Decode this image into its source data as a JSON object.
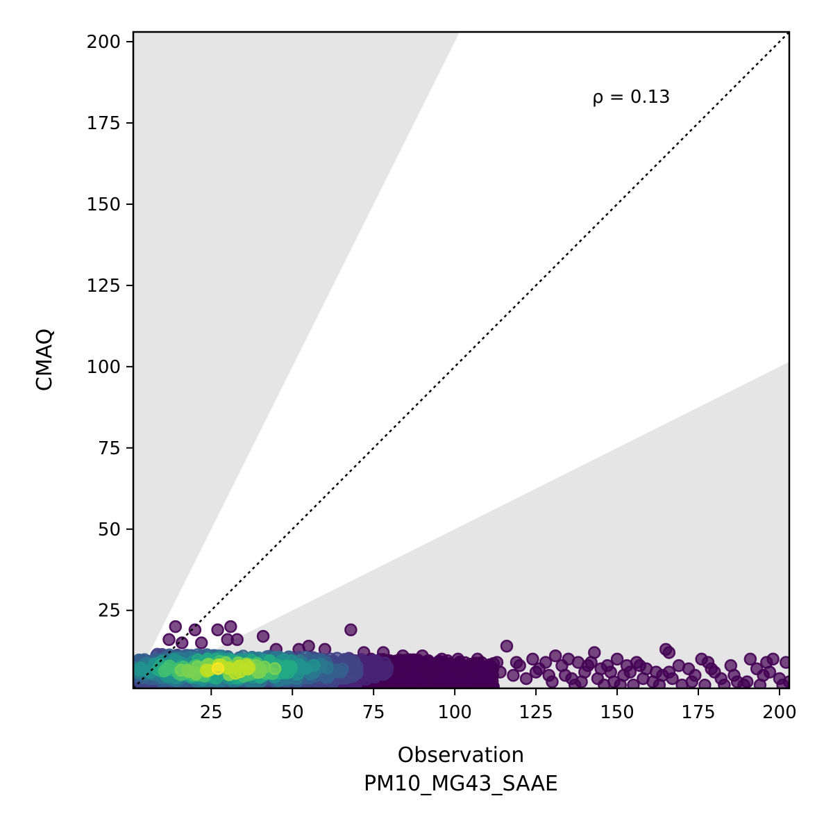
{
  "chart_data": {
    "type": "scatter",
    "title": "",
    "xlabel": "Observation",
    "xlabel2": "PM10_MG43_SAAE",
    "ylabel": "CMAQ",
    "xlim": [
      1,
      203
    ],
    "ylim": [
      1,
      203
    ],
    "xticks": [
      25,
      50,
      75,
      100,
      125,
      150,
      175,
      200
    ],
    "yticks": [
      25,
      50,
      75,
      100,
      125,
      150,
      175,
      200
    ],
    "annotation": "ρ = 0.13",
    "reference_line": {
      "type": "1:1",
      "style": "dotted",
      "color": "#000000"
    },
    "shaded_regions": {
      "color": "#e5e5e5",
      "upper_slope": 2.0,
      "lower_slope": 0.5,
      "description": "outside factor-of-2 band"
    },
    "colormap": "viridis",
    "marker_alpha": 0.7,
    "sparse_points": [
      [
        14,
        20
      ],
      [
        20,
        19
      ],
      [
        27,
        19
      ],
      [
        31,
        20
      ],
      [
        41,
        17
      ],
      [
        68,
        19
      ],
      [
        116,
        14
      ],
      [
        143,
        12
      ],
      [
        165,
        13
      ],
      [
        166,
        12
      ],
      [
        12,
        16
      ],
      [
        16,
        15
      ],
      [
        22,
        15
      ],
      [
        30,
        16
      ],
      [
        33,
        16
      ],
      [
        45,
        13
      ],
      [
        52,
        13
      ],
      [
        55,
        14
      ],
      [
        60,
        13
      ],
      [
        72,
        12
      ],
      [
        78,
        12
      ],
      [
        84,
        11
      ],
      [
        90,
        11
      ],
      [
        96,
        10
      ],
      [
        101,
        10
      ],
      [
        107,
        10
      ],
      [
        113,
        9
      ],
      [
        119,
        9
      ],
      [
        124,
        10
      ],
      [
        128,
        9
      ],
      [
        131,
        11
      ],
      [
        135,
        10
      ],
      [
        138,
        9
      ],
      [
        141,
        8
      ],
      [
        145,
        7
      ],
      [
        148,
        6
      ],
      [
        150,
        10
      ],
      [
        153,
        8
      ],
      [
        156,
        9
      ],
      [
        159,
        7
      ],
      [
        162,
        6
      ],
      [
        164,
        5
      ],
      [
        167,
        4
      ],
      [
        169,
        8
      ],
      [
        172,
        7
      ],
      [
        174,
        5
      ],
      [
        176,
        10
      ],
      [
        178,
        9
      ],
      [
        180,
        6
      ],
      [
        182,
        4
      ],
      [
        185,
        8
      ],
      [
        187,
        3
      ],
      [
        189,
        2
      ],
      [
        191,
        10
      ],
      [
        193,
        7
      ],
      [
        195,
        5
      ],
      [
        196,
        9
      ],
      [
        198,
        10
      ],
      [
        200,
        4
      ],
      [
        202,
        9
      ],
      [
        110,
        7
      ],
      [
        114,
        6
      ],
      [
        118,
        5
      ],
      [
        122,
        4
      ],
      [
        126,
        7
      ],
      [
        130,
        3
      ],
      [
        134,
        5
      ],
      [
        137,
        2
      ],
      [
        140,
        6
      ],
      [
        144,
        4
      ],
      [
        146,
        2
      ],
      [
        149,
        3
      ],
      [
        152,
        5
      ],
      [
        155,
        2
      ],
      [
        158,
        4
      ],
      [
        161,
        3
      ],
      [
        163,
        2
      ],
      [
        166,
        6
      ],
      [
        170,
        2
      ],
      [
        173,
        3
      ],
      [
        177,
        2
      ],
      [
        179,
        7
      ],
      [
        183,
        2
      ],
      [
        186,
        5
      ],
      [
        190,
        3
      ],
      [
        194,
        2
      ],
      [
        197,
        6
      ],
      [
        201,
        2
      ],
      [
        203,
        3
      ],
      [
        120,
        8
      ],
      [
        125,
        6
      ],
      [
        129,
        5
      ],
      [
        133,
        8
      ],
      [
        136,
        4
      ],
      [
        139,
        3
      ],
      [
        142,
        9
      ],
      [
        147,
        8
      ],
      [
        151,
        2
      ],
      [
        154,
        6
      ],
      [
        157,
        8
      ]
    ],
    "dense_region": {
      "x_range": [
        1,
        112
      ],
      "y_range": [
        0,
        12
      ],
      "peak": [
        30,
        7
      ],
      "note": "high-density cluster colored by point density"
    }
  }
}
